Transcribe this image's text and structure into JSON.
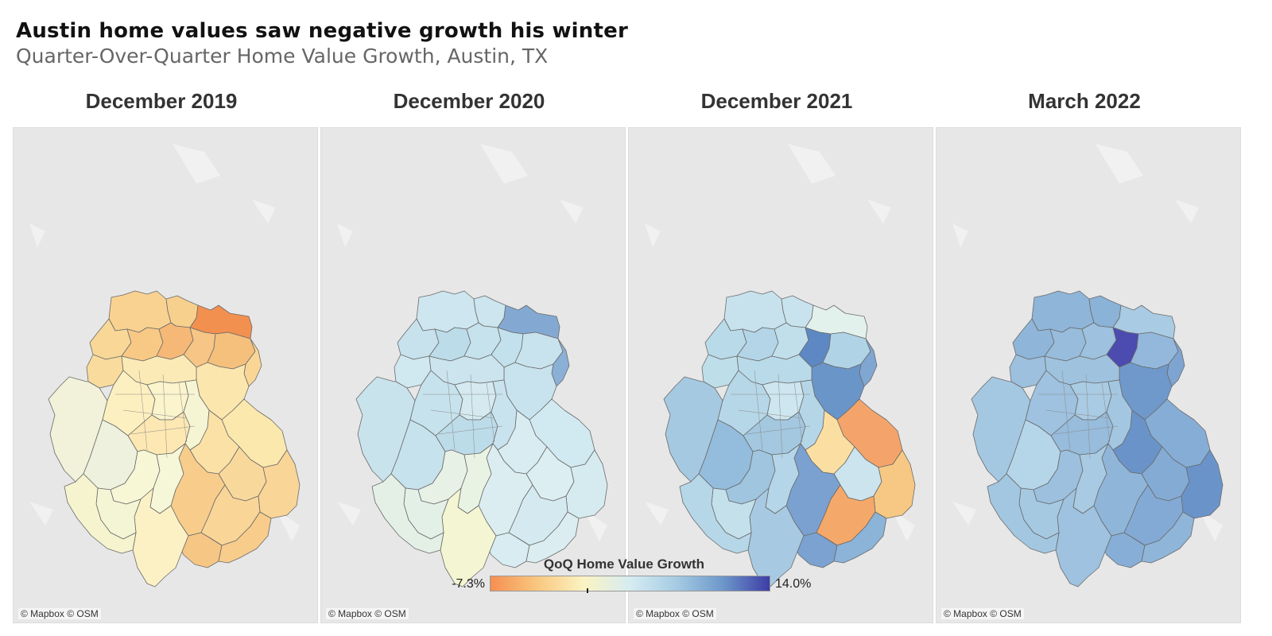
{
  "header": {
    "title": "Austin home values saw negative growth his winter",
    "subtitle": "Quarter-Over-Quarter Home Value Growth, Austin, TX"
  },
  "panels": [
    {
      "title": "December 2019",
      "attribution": "© Mapbox © OSM",
      "regions": [
        {
          "id": "n1",
          "color": "#f9d291"
        },
        {
          "id": "n2",
          "color": "#f7d08e"
        },
        {
          "id": "n3",
          "color": "#f2904f"
        },
        {
          "id": "n4",
          "color": "#f9d797"
        },
        {
          "id": "n5",
          "color": "#f8c985"
        },
        {
          "id": "n6",
          "color": "#f6b877"
        },
        {
          "id": "n7",
          "color": "#f7c585"
        },
        {
          "id": "n8",
          "color": "#f5c07c"
        },
        {
          "id": "n9",
          "color": "#f9db9d"
        },
        {
          "id": "n10",
          "color": "#f9d695"
        },
        {
          "id": "n11",
          "color": "#fbe6ad"
        },
        {
          "id": "n12",
          "color": "#fbeab5"
        },
        {
          "id": "w1",
          "color": "#f1f2d9"
        },
        {
          "id": "w2",
          "color": "#eef1dd"
        },
        {
          "id": "c1",
          "color": "#fdf0c0"
        },
        {
          "id": "c2",
          "color": "#fbf4cc"
        },
        {
          "id": "c3",
          "color": "#fde8b3"
        },
        {
          "id": "c4",
          "color": "#f6f5d3"
        },
        {
          "id": "e1",
          "color": "#fbe8ad"
        },
        {
          "id": "e2",
          "color": "#fbe1a6"
        },
        {
          "id": "e3",
          "color": "#f9d99b"
        },
        {
          "id": "e4",
          "color": "#f9d597"
        },
        {
          "id": "e5",
          "color": "#f8cd8c"
        },
        {
          "id": "e6",
          "color": "#f9d597"
        },
        {
          "id": "s1",
          "color": "#f7f7d6"
        },
        {
          "id": "s2",
          "color": "#f5f7d8"
        },
        {
          "id": "s3",
          "color": "#fbf1c4"
        },
        {
          "id": "s4",
          "color": "#f4f5d4"
        },
        {
          "id": "s5",
          "color": "#f6c685"
        },
        {
          "id": "s6",
          "color": "#f8cc8b"
        },
        {
          "id": "s7",
          "color": "#f6f4cf"
        }
      ]
    },
    {
      "title": "December 2020",
      "attribution": "© Mapbox © OSM",
      "regions": [
        {
          "id": "n1",
          "color": "#cde6ef"
        },
        {
          "id": "n2",
          "color": "#cce5ee"
        },
        {
          "id": "n3",
          "color": "#83a9d3"
        },
        {
          "id": "n4",
          "color": "#c7e2ed"
        },
        {
          "id": "n5",
          "color": "#bcdce9"
        },
        {
          "id": "n6",
          "color": "#c6e2ec"
        },
        {
          "id": "n7",
          "color": "#c3e1ec"
        },
        {
          "id": "n8",
          "color": "#c9e3ee"
        },
        {
          "id": "n9",
          "color": "#d0e8ef"
        },
        {
          "id": "n10",
          "color": "#8ab0d6"
        },
        {
          "id": "n11",
          "color": "#c8e3ed"
        },
        {
          "id": "n12",
          "color": "#cbe4ee"
        },
        {
          "id": "w1",
          "color": "#c9e3ed"
        },
        {
          "id": "w2",
          "color": "#c6e2ec"
        },
        {
          "id": "c1",
          "color": "#c6e2ec"
        },
        {
          "id": "c2",
          "color": "#d4eaf0"
        },
        {
          "id": "c3",
          "color": "#bddce9"
        },
        {
          "id": "c4",
          "color": "#c8e3ed"
        },
        {
          "id": "e1",
          "color": "#d1e9f0"
        },
        {
          "id": "e2",
          "color": "#d8ecf1"
        },
        {
          "id": "e3",
          "color": "#dceef1"
        },
        {
          "id": "e4",
          "color": "#d6ebf0"
        },
        {
          "id": "e5",
          "color": "#dbedf1"
        },
        {
          "id": "e6",
          "color": "#d5eaf0"
        },
        {
          "id": "s1",
          "color": "#e7f1e6"
        },
        {
          "id": "s2",
          "color": "#e9f3e4"
        },
        {
          "id": "s3",
          "color": "#f4f5d2"
        },
        {
          "id": "s4",
          "color": "#e3f0e8"
        },
        {
          "id": "s5",
          "color": "#d8ecf1"
        },
        {
          "id": "s6",
          "color": "#dcedf1"
        },
        {
          "id": "s7",
          "color": "#e4f0e6"
        }
      ]
    },
    {
      "title": "December 2021",
      "attribution": "© Mapbox © OSM",
      "regions": [
        {
          "id": "n1",
          "color": "#c7e2ed"
        },
        {
          "id": "n2",
          "color": "#c9e3ee"
        },
        {
          "id": "n3",
          "color": "#e3f1ec"
        },
        {
          "id": "n4",
          "color": "#b9dae9"
        },
        {
          "id": "n5",
          "color": "#b3d5e7"
        },
        {
          "id": "n6",
          "color": "#c1dfeb"
        },
        {
          "id": "n7",
          "color": "#5d88c3"
        },
        {
          "id": "n8",
          "color": "#b0d3e6"
        },
        {
          "id": "n9",
          "color": "#bedeea"
        },
        {
          "id": "n10",
          "color": "#80a6d2"
        },
        {
          "id": "n11",
          "color": "#6a95c9"
        },
        {
          "id": "n12",
          "color": "#b9dae9"
        },
        {
          "id": "w1",
          "color": "#a5c9e1"
        },
        {
          "id": "w2",
          "color": "#94bcdc"
        },
        {
          "id": "c1",
          "color": "#b6d7e8"
        },
        {
          "id": "c2",
          "color": "#cde6ef"
        },
        {
          "id": "c3",
          "color": "#a3c8e0"
        },
        {
          "id": "c4",
          "color": "#b4d6e7"
        },
        {
          "id": "e1",
          "color": "#f4a46a"
        },
        {
          "id": "e2",
          "color": "#fbdfa2"
        },
        {
          "id": "e3",
          "color": "#cbe4ee"
        },
        {
          "id": "e4",
          "color": "#f6c884"
        },
        {
          "id": "e5",
          "color": "#7aa1cf"
        },
        {
          "id": "e6",
          "color": "#f4a869"
        },
        {
          "id": "s1",
          "color": "#a0c5df"
        },
        {
          "id": "s2",
          "color": "#b5d6e8"
        },
        {
          "id": "s3",
          "color": "#a7cae2"
        },
        {
          "id": "s4",
          "color": "#c3e0eb"
        },
        {
          "id": "s5",
          "color": "#7ba2d0"
        },
        {
          "id": "s6",
          "color": "#8cb3d8"
        },
        {
          "id": "s7",
          "color": "#b6d7e8"
        }
      ]
    },
    {
      "title": "March 2022",
      "attribution": "© Mapbox © OSM",
      "regions": [
        {
          "id": "n1",
          "color": "#8fb5d9"
        },
        {
          "id": "n2",
          "color": "#8bb2d7"
        },
        {
          "id": "n3",
          "color": "#a9cbe3"
        },
        {
          "id": "n4",
          "color": "#8fb6d9"
        },
        {
          "id": "n5",
          "color": "#97bcdc"
        },
        {
          "id": "n6",
          "color": "#9dc1de"
        },
        {
          "id": "n7",
          "color": "#4c4bb0"
        },
        {
          "id": "n8",
          "color": "#93b8db"
        },
        {
          "id": "n9",
          "color": "#9cc0de"
        },
        {
          "id": "n10",
          "color": "#7ea4d1"
        },
        {
          "id": "n11",
          "color": "#6f99cb"
        },
        {
          "id": "n12",
          "color": "#9fc3df"
        },
        {
          "id": "w1",
          "color": "#a4c8e1"
        },
        {
          "id": "w2",
          "color": "#b5d6e8"
        },
        {
          "id": "c1",
          "color": "#9ec2df"
        },
        {
          "id": "c2",
          "color": "#a9cbe3"
        },
        {
          "id": "c3",
          "color": "#97bcdc"
        },
        {
          "id": "c4",
          "color": "#a3c7e1"
        },
        {
          "id": "e1",
          "color": "#86add5"
        },
        {
          "id": "e2",
          "color": "#6a94c9"
        },
        {
          "id": "e3",
          "color": "#84abd4"
        },
        {
          "id": "e4",
          "color": "#6a94c9"
        },
        {
          "id": "e5",
          "color": "#8fb5d9"
        },
        {
          "id": "e6",
          "color": "#83aad4"
        },
        {
          "id": "s1",
          "color": "#9cc0de"
        },
        {
          "id": "s2",
          "color": "#a8cae2"
        },
        {
          "id": "s3",
          "color": "#9ec2df"
        },
        {
          "id": "s4",
          "color": "#a6c9e2"
        },
        {
          "id": "s5",
          "color": "#87aed6"
        },
        {
          "id": "s6",
          "color": "#8fb5d9"
        },
        {
          "id": "s7",
          "color": "#a3c7e1"
        }
      ]
    }
  ],
  "legend": {
    "title": "QoQ Home Value Growth",
    "min_label": "-7.3%",
    "max_label": "14.0%",
    "gradient": [
      "#f58f52",
      "#f9c77f",
      "#fbf3c2",
      "#d6ecf2",
      "#a5cbe3",
      "#6d97ca",
      "#3e3da6"
    ]
  }
}
